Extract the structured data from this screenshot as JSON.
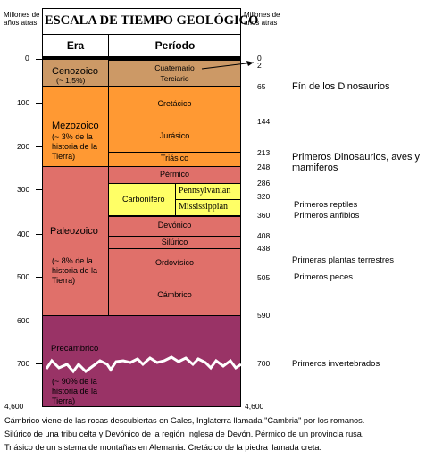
{
  "header": {
    "left_axis_label": "Millones de\naños atras",
    "title": "ESCALA DE TIEMPO GEOLÓGICO",
    "right_axis_label": "Millones de\naños atras",
    "era_col": "Era",
    "period_col": "Período"
  },
  "left_ticks": [
    "0",
    "100",
    "200",
    "300",
    "400",
    "500",
    "600",
    "700",
    "4,600"
  ],
  "eras": {
    "cenozoic_name": "Cenozoico",
    "cenozoic_pct": "(~ 1,5%)",
    "mesozoic_name": "Mezozoico",
    "mesozoic_pct": "(~ 3% de la\nhistoria de la\nTierra)",
    "paleozoic_name": "Paleozoico",
    "paleozoic_pct": "(~ 8% de la\nhistoria de la\nTierra)",
    "precambrian_name": "Precámbrico",
    "precambrian_pct": "(~ 90% de la\nhistoria de la\nTierra)"
  },
  "periods": {
    "cuaternario": "Cuaternario",
    "terciario": "Terciario",
    "cretacico": "Cretácico",
    "jurasico": "Jurásico",
    "triasico": "Triásico",
    "permico": "Pérmico",
    "carbonifero": "Carbonífero",
    "pennsylvanian": "Pennsylvanian",
    "mississippian": "Mississippian",
    "devonico": "Devónico",
    "silurico": "Silúrico",
    "ordovicico": "Ordovísico",
    "cambrico": "Cámbrico"
  },
  "right_ticks": {
    "t0": "0",
    "t2": "2",
    "t65": "65",
    "t144": "144",
    "t213": "213",
    "t248": "248",
    "t286": "286",
    "t320": "320",
    "t360": "360",
    "t408": "408",
    "t438": "438",
    "t505": "505",
    "t590": "590",
    "t700": "700",
    "t4600": "4,600"
  },
  "annotations": {
    "dinosaurs_end": "Fín de los Dinosaurios",
    "first_dinosaurs": "Primeros Dinosaurios, aves y\nmamiferos",
    "first_reptiles": "Primeros reptiles",
    "first_amphibians": "Primeros anfibios",
    "first_plants": "Primeras plantas terrestres",
    "first_fish": "Primeros peces",
    "first_invertebrates": "Primeros invertebrados"
  },
  "footnote": [
    "Cámbrico viene de las rocas descubiertas en Gales, Inglaterra llamada  \"Cambria\" por los romanos.",
    "Silúrico de una tribu celta y Devónico de la región Inglesa de Devón. Pérmico de un provincia rusa.",
    "Triásico de un sistema de montañas en Alemania. Cretácico de la piedra llamada creta."
  ],
  "colors": {
    "cenozoic": "#cc9966",
    "mesozoic": "#ff9933",
    "paleozoic": "#e0706a",
    "precambrian": "#993366",
    "carboniferous": "#ffff66"
  }
}
